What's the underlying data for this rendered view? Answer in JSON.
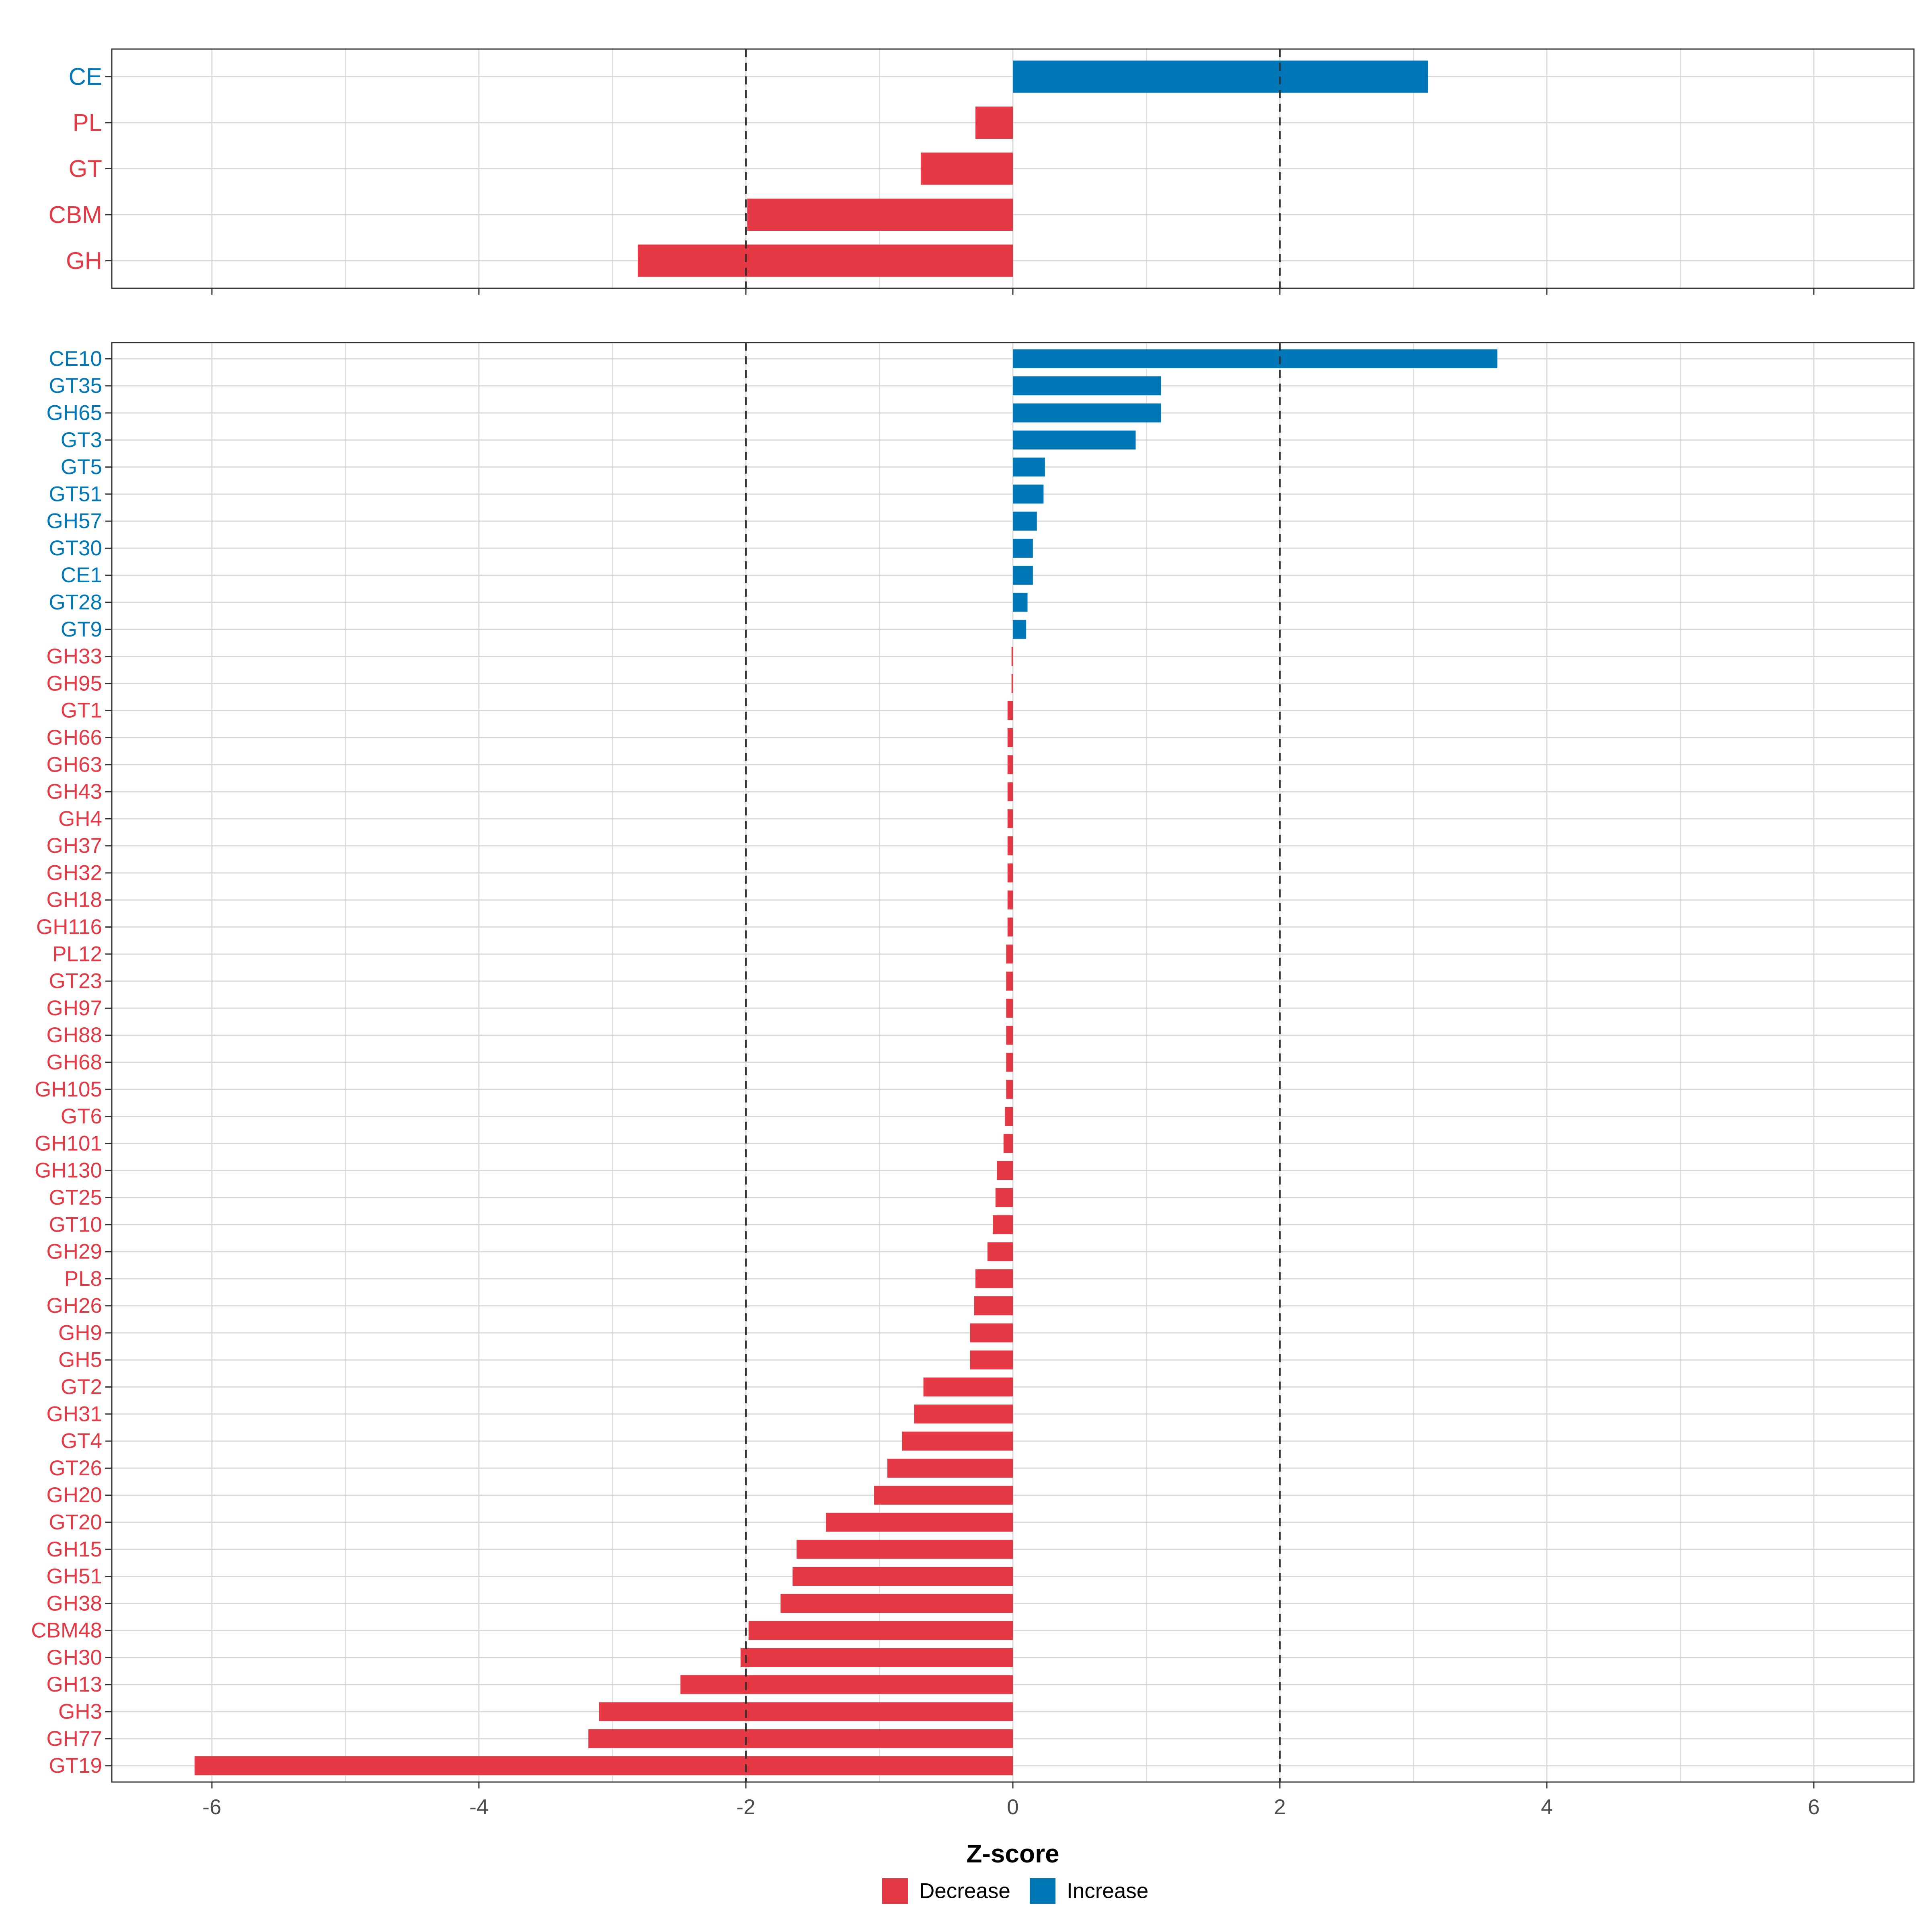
{
  "colors": {
    "decrease": "#E63946",
    "increase": "#0077B6",
    "grid": "#D9D9D9",
    "axis_text": "#4D4D4D",
    "ref_line": "#333333",
    "panel_border": "#333333"
  },
  "legend": {
    "items": [
      {
        "label": "Decrease",
        "color": "#E63946"
      },
      {
        "label": "Increase",
        "color": "#0077B6"
      }
    ]
  },
  "chart_data": [
    {
      "type": "bar",
      "orientation": "horizontal",
      "panel": "class",
      "xlabel": "",
      "xlim": [
        -6.75,
        6.75
      ],
      "xticks": [
        -6,
        -4,
        -2,
        0,
        2,
        4,
        6
      ],
      "reference_lines": [
        -2,
        2
      ],
      "categories": [
        "CE",
        "PL",
        "GT",
        "CBM",
        "GH"
      ],
      "values": [
        3.11,
        -0.28,
        -0.69,
        -1.99,
        -2.81
      ],
      "directions": [
        "Increase",
        "Decrease",
        "Decrease",
        "Decrease",
        "Decrease"
      ]
    },
    {
      "type": "bar",
      "orientation": "horizontal",
      "panel": "family",
      "xlabel": "Z-score",
      "xlim": [
        -6.75,
        6.75
      ],
      "xticks": [
        -6,
        -4,
        -2,
        0,
        2,
        4,
        6
      ],
      "xtick_labels": [
        "-6",
        "-4",
        "-2",
        "0",
        "2",
        "4",
        "6"
      ],
      "reference_lines": [
        -2,
        2
      ],
      "categories": [
        "CE10",
        "GT35",
        "GH65",
        "GT3",
        "GT5",
        "GT51",
        "GH57",
        "GT30",
        "CE1",
        "GT28",
        "GT9",
        "GH33",
        "GH95",
        "GT1",
        "GH66",
        "GH63",
        "GH43",
        "GH4",
        "GH37",
        "GH32",
        "GH18",
        "GH116",
        "PL12",
        "GT23",
        "GH97",
        "GH88",
        "GH68",
        "GH105",
        "GT6",
        "GH101",
        "GH130",
        "GT25",
        "GT10",
        "GH29",
        "PL8",
        "GH26",
        "GH9",
        "GH5",
        "GT2",
        "GH31",
        "GT4",
        "GT26",
        "GH20",
        "GT20",
        "GH15",
        "GH51",
        "GH38",
        "CBM48",
        "GH30",
        "GH13",
        "GH3",
        "GH77",
        "GT19"
      ],
      "values": [
        3.63,
        1.11,
        1.11,
        0.92,
        0.24,
        0.23,
        0.18,
        0.15,
        0.15,
        0.11,
        0.1,
        -0.01,
        -0.01,
        -0.04,
        -0.04,
        -0.04,
        -0.04,
        -0.04,
        -0.04,
        -0.04,
        -0.04,
        -0.04,
        -0.05,
        -0.05,
        -0.05,
        -0.05,
        -0.05,
        -0.05,
        -0.06,
        -0.07,
        -0.12,
        -0.13,
        -0.15,
        -0.19,
        -0.28,
        -0.29,
        -0.32,
        -0.32,
        -0.67,
        -0.74,
        -0.83,
        -0.94,
        -1.04,
        -1.4,
        -1.62,
        -1.65,
        -1.74,
        -1.98,
        -2.04,
        -2.49,
        -3.1,
        -3.18,
        -6.13
      ],
      "directions": [
        "Increase",
        "Increase",
        "Increase",
        "Increase",
        "Increase",
        "Increase",
        "Increase",
        "Increase",
        "Increase",
        "Increase",
        "Increase",
        "Decrease",
        "Decrease",
        "Decrease",
        "Decrease",
        "Decrease",
        "Decrease",
        "Decrease",
        "Decrease",
        "Decrease",
        "Decrease",
        "Decrease",
        "Decrease",
        "Decrease",
        "Decrease",
        "Decrease",
        "Decrease",
        "Decrease",
        "Decrease",
        "Decrease",
        "Decrease",
        "Decrease",
        "Decrease",
        "Decrease",
        "Decrease",
        "Decrease",
        "Decrease",
        "Decrease",
        "Decrease",
        "Decrease",
        "Decrease",
        "Decrease",
        "Decrease",
        "Decrease",
        "Decrease",
        "Decrease",
        "Decrease",
        "Decrease",
        "Decrease",
        "Decrease",
        "Decrease",
        "Decrease",
        "Decrease"
      ]
    }
  ]
}
